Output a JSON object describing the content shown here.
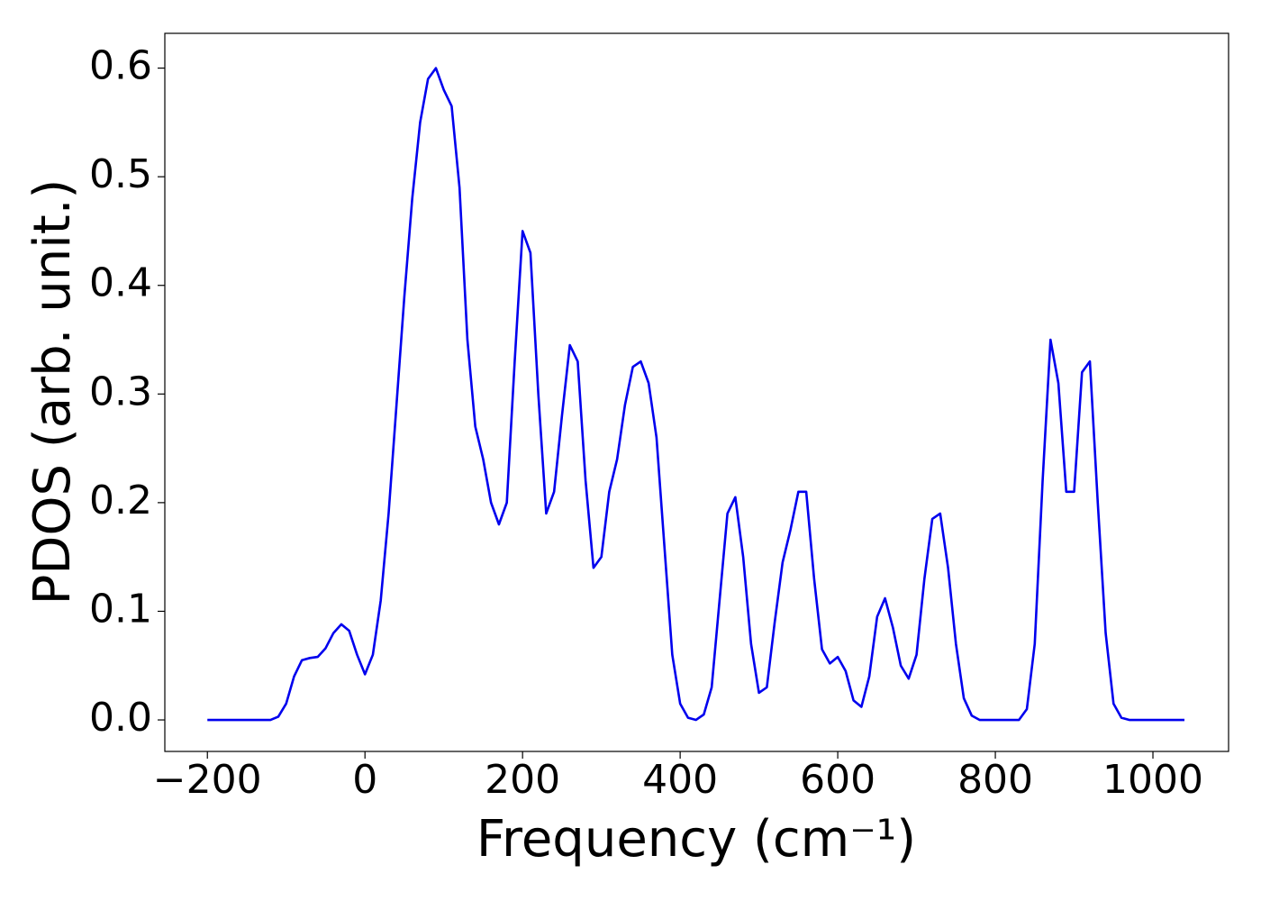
{
  "chart_data": {
    "type": "line",
    "xlabel": "Frequency (cm⁻¹)",
    "ylabel": "PDOS (arb. unit.)",
    "xlim": [
      -254,
      1096
    ],
    "ylim": [
      -0.029,
      0.632
    ],
    "xticks": [
      {
        "value": -200,
        "label": "−200"
      },
      0,
      200,
      400,
      600,
      800,
      1000
    ],
    "yticks": [
      {
        "value": 0,
        "label": "0.0"
      },
      0.1,
      0.2,
      0.3,
      0.4,
      0.5,
      0.6
    ],
    "grid": false,
    "x": [
      -200,
      -190,
      -180,
      -170,
      -160,
      -150,
      -140,
      -130,
      -120,
      -110,
      -100,
      -90,
      -80,
      -70,
      -60,
      -50,
      -40,
      -30,
      -20,
      -10,
      0,
      10,
      20,
      30,
      40,
      50,
      60,
      70,
      80,
      90,
      100,
      110,
      120,
      130,
      140,
      150,
      160,
      170,
      180,
      190,
      200,
      210,
      220,
      230,
      240,
      250,
      260,
      270,
      280,
      290,
      300,
      310,
      320,
      330,
      340,
      350,
      360,
      370,
      380,
      390,
      400,
      410,
      420,
      430,
      440,
      450,
      460,
      470,
      480,
      490,
      500,
      510,
      520,
      530,
      540,
      550,
      560,
      570,
      580,
      590,
      600,
      610,
      620,
      630,
      640,
      650,
      660,
      670,
      680,
      690,
      700,
      710,
      720,
      730,
      740,
      750,
      760,
      770,
      780,
      790,
      800,
      810,
      820,
      830,
      840,
      850,
      860,
      870,
      880,
      890,
      900,
      910,
      920,
      930,
      940,
      950,
      960,
      970,
      980,
      990,
      1000,
      1010,
      1020,
      1030,
      1040
    ],
    "series": [
      {
        "name": "PDOS",
        "color": "#0000ee",
        "values": [
          0,
          0,
          0,
          0,
          0,
          0,
          0,
          0,
          0,
          0.003,
          0.015,
          0.04,
          0.055,
          0.057,
          0.058,
          0.066,
          0.08,
          0.088,
          0.082,
          0.06,
          0.042,
          0.06,
          0.11,
          0.19,
          0.29,
          0.39,
          0.48,
          0.55,
          0.59,
          0.6,
          0.58,
          0.565,
          0.49,
          0.35,
          0.27,
          0.24,
          0.2,
          0.18,
          0.2,
          0.33,
          0.45,
          0.43,
          0.3,
          0.19,
          0.21,
          0.28,
          0.345,
          0.33,
          0.22,
          0.14,
          0.15,
          0.21,
          0.24,
          0.29,
          0.325,
          0.33,
          0.31,
          0.26,
          0.16,
          0.06,
          0.015,
          0.002,
          0,
          0.005,
          0.03,
          0.11,
          0.19,
          0.205,
          0.15,
          0.07,
          0.025,
          0.03,
          0.09,
          0.145,
          0.175,
          0.21,
          0.21,
          0.13,
          0.065,
          0.052,
          0.058,
          0.045,
          0.018,
          0.012,
          0.04,
          0.095,
          0.112,
          0.085,
          0.05,
          0.038,
          0.06,
          0.13,
          0.185,
          0.19,
          0.14,
          0.07,
          0.02,
          0.004,
          0,
          0,
          0,
          0,
          0,
          0,
          0.01,
          0.07,
          0.22,
          0.35,
          0.31,
          0.21,
          0.21,
          0.32,
          0.33,
          0.2,
          0.08,
          0.015,
          0.002,
          0,
          0,
          0,
          0,
          0,
          0,
          0,
          0
        ]
      }
    ]
  }
}
